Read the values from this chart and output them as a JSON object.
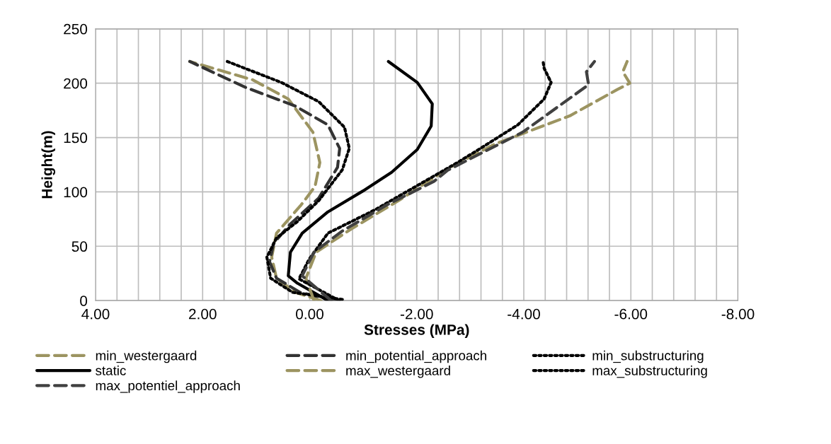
{
  "chart_data": {
    "type": "line",
    "xlabel": "Stresses (MPa)",
    "ylabel": "Height(m)",
    "xlim": [
      4,
      -8
    ],
    "ylim": [
      0,
      250
    ],
    "xticks": [
      {
        "value": 4,
        "label": "4.00"
      },
      {
        "value": 3.6,
        "label": null
      },
      {
        "value": 3.2,
        "label": null
      },
      {
        "value": 2.8,
        "label": null
      },
      {
        "value": 2.4,
        "label": null
      },
      {
        "value": 2,
        "label": "2.00"
      },
      {
        "value": 1.6,
        "label": null
      },
      {
        "value": 1.2,
        "label": null
      },
      {
        "value": 0.8,
        "label": null
      },
      {
        "value": 0.4,
        "label": null
      },
      {
        "value": 0,
        "label": "0.00"
      },
      {
        "value": -0.4,
        "label": null
      },
      {
        "value": -0.8,
        "label": null
      },
      {
        "value": -1.2,
        "label": null
      },
      {
        "value": -1.6,
        "label": null
      },
      {
        "value": -2,
        "label": "-2.00"
      },
      {
        "value": -2.4,
        "label": null
      },
      {
        "value": -2.8,
        "label": null
      },
      {
        "value": -3.2,
        "label": null
      },
      {
        "value": -3.6,
        "label": null
      },
      {
        "value": -4,
        "label": "-4.00"
      },
      {
        "value": -4.4,
        "label": null
      },
      {
        "value": -4.8,
        "label": null
      },
      {
        "value": -5.2,
        "label": null
      },
      {
        "value": -5.6,
        "label": null
      },
      {
        "value": -6,
        "label": "-6.00"
      },
      {
        "value": -6.4,
        "label": null
      },
      {
        "value": -6.8,
        "label": null
      },
      {
        "value": -7.2,
        "label": null
      },
      {
        "value": -7.6,
        "label": null
      },
      {
        "value": -8,
        "label": "-8.00"
      }
    ],
    "yticks": [
      0,
      50,
      100,
      150,
      200,
      250
    ],
    "grid": true,
    "legend": "bottom",
    "marker": "none",
    "series": [
      {
        "name": "min_westergaard",
        "color": "#9c9461",
        "line_style": "dashed",
        "x": [
          -0.21,
          0.27,
          0.62,
          0.71,
          0.62,
          0.16,
          -0.1,
          -0.19,
          -0.06,
          0.4,
          1.06,
          2.24
        ],
        "values": [
          0,
          7.6,
          20.6,
          40,
          62,
          88,
          105,
          127,
          155,
          185.5,
          203,
          220
        ]
      },
      {
        "name": "min_potential_approach",
        "color": "#333333",
        "line_style": "dashed",
        "x": [
          -0.47,
          0.18,
          0.62,
          0.75,
          0.67,
          0.36,
          -0.17,
          -0.52,
          -0.56,
          -0.34,
          0.27,
          1.19,
          2.24
        ],
        "values": [
          0,
          7.6,
          20.6,
          35.8,
          53,
          70.5,
          94.4,
          122.6,
          140,
          161.7,
          179,
          196,
          220
        ]
      },
      {
        "name": "min_substructuring",
        "color": "#000000",
        "line_style": "dotted",
        "x": [
          -0.61,
          0.32,
          0.73,
          0.8,
          0.62,
          0.23,
          -0.17,
          -0.61,
          -0.74,
          -0.65,
          -0.17,
          0.53,
          1.54
        ],
        "values": [
          1,
          7.6,
          20.6,
          40,
          57.5,
          72.7,
          92,
          120.4,
          140,
          159.5,
          183,
          200.7,
          220
        ]
      },
      {
        "name": "static",
        "color": "#000000",
        "line_style": "solid",
        "x": [
          -0.34,
          0.23,
          0.4,
          0.36,
          0.14,
          -0.34,
          -1.0,
          -1.53,
          -2.01,
          -2.27,
          -2.29,
          -2.01,
          -1.47
        ],
        "values": [
          0,
          16,
          22.8,
          44.5,
          62,
          81.6,
          101,
          118,
          139,
          160.6,
          181,
          200.7,
          220
        ]
      },
      {
        "name": "max_westergaard",
        "color": "#9c9461",
        "line_style": "dashed",
        "x": [
          -0.08,
          0.07,
          -0.12,
          -0.78,
          -1.66,
          -2.62,
          -3.46,
          -4.86,
          -5.74,
          -5.98,
          -5.85,
          -5.93
        ],
        "values": [
          0,
          20.6,
          44.5,
          66,
          92,
          122.6,
          144,
          170,
          194,
          200,
          210.5,
          220
        ]
      },
      {
        "name": "max_substructuring",
        "color": "#000000",
        "line_style": "dotted",
        "x": [
          -0.55,
          0.2,
          0.01,
          -0.34,
          -1.22,
          -2.76,
          -3.19,
          -3.89,
          -4.38,
          -4.51,
          -4.38,
          -4.36
        ],
        "values": [
          0,
          20,
          38,
          62,
          83.5,
          127,
          140,
          161.7,
          185.5,
          200.7,
          213.7,
          220
        ]
      },
      {
        "name": "max_potentiel_approach",
        "color": "#404040",
        "line_style": "dashed",
        "x": [
          -0.4,
          0.14,
          -0.08,
          -0.61,
          -1.44,
          -2.32,
          -2.58,
          -3.98,
          -5.21,
          -5.17,
          -5.32
        ],
        "values": [
          0,
          22.8,
          44.5,
          64,
          88,
          109.6,
          120,
          155,
          198.6,
          210.5,
          220
        ]
      }
    ]
  }
}
